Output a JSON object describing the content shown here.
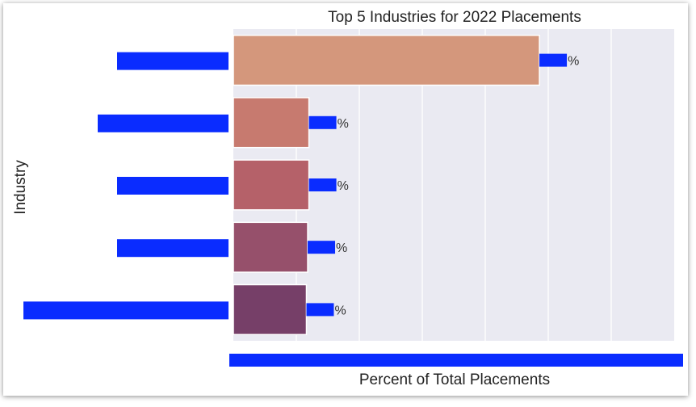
{
  "chart_data": {
    "type": "bar",
    "orientation": "horizontal",
    "title": "Top 5 Industries for 2022 Placements",
    "xlabel": "Percent of Total Placements",
    "ylabel": "Industry",
    "categories": [
      "",
      "",
      "",
      "",
      ""
    ],
    "values": [
      24.3,
      6.0,
      6.0,
      5.9,
      5.8
    ],
    "value_suffix": "%",
    "xlim": [
      0,
      35
    ],
    "grid": true,
    "colors": [
      "#d4977c",
      "#c77a6f",
      "#b56169",
      "#96506b",
      "#763f68"
    ],
    "plot_background": "#eaeaf2",
    "redaction_color": "#0a2cff"
  }
}
